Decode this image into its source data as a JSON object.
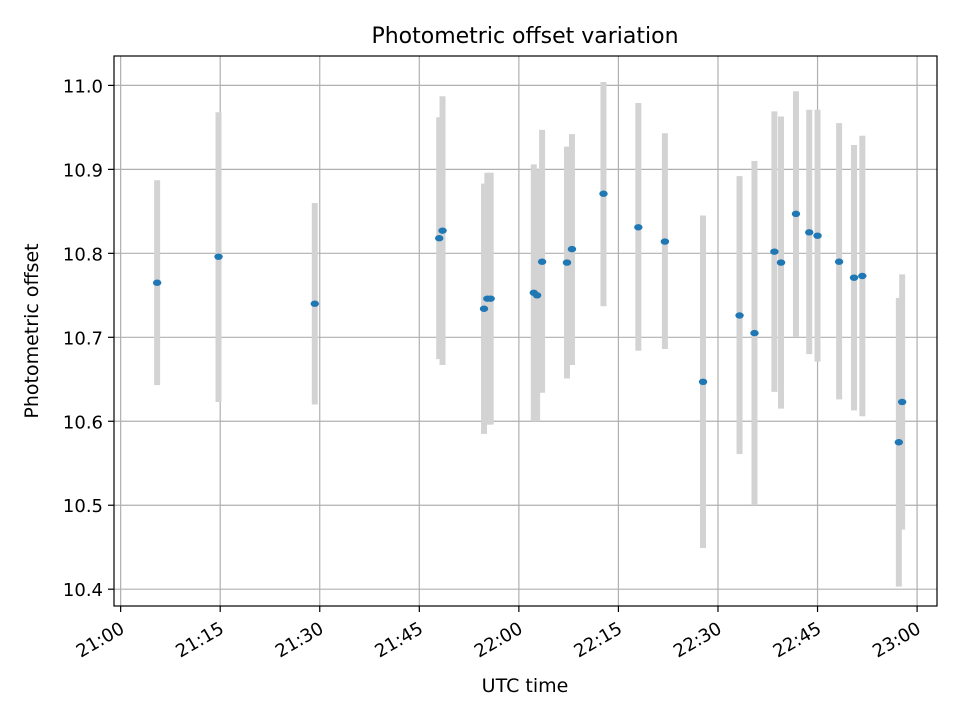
{
  "chart_data": {
    "type": "scatter",
    "title": "Photometric offset variation",
    "xlabel": "UTC time",
    "ylabel": "Photometric offset",
    "grid": true,
    "colors": {
      "point": "#1f77b4",
      "errorbar": "#d3d3d3",
      "grid": "#b0b0b0"
    },
    "x_ticks": [
      "21:00",
      "21:15",
      "21:30",
      "21:45",
      "22:00",
      "22:15",
      "22:30",
      "22:45",
      "23:00"
    ],
    "y_ticks": [
      "10.4",
      "10.5",
      "10.6",
      "10.7",
      "10.8",
      "10.9",
      "11.0"
    ],
    "xlim": [
      "20:59",
      "23:03"
    ],
    "ylim": [
      10.38,
      11.035
    ],
    "points": [
      {
        "x": "21:05:30",
        "y": 10.765,
        "lo": 10.643,
        "hi": 10.887
      },
      {
        "x": "21:14:45",
        "y": 10.796,
        "lo": 10.623,
        "hi": 10.968
      },
      {
        "x": "21:29:15",
        "y": 10.74,
        "lo": 10.62,
        "hi": 10.86
      },
      {
        "x": "21:48:00",
        "y": 10.818,
        "lo": 10.674,
        "hi": 10.962
      },
      {
        "x": "21:48:30",
        "y": 10.827,
        "lo": 10.667,
        "hi": 10.987
      },
      {
        "x": "21:54:45",
        "y": 10.734,
        "lo": 10.585,
        "hi": 10.883
      },
      {
        "x": "21:55:15",
        "y": 10.746,
        "lo": 10.596,
        "hi": 10.896
      },
      {
        "x": "21:55:45",
        "y": 10.746,
        "lo": 10.596,
        "hi": 10.896
      },
      {
        "x": "22:02:15",
        "y": 10.753,
        "lo": 10.6,
        "hi": 10.906
      },
      {
        "x": "22:02:45",
        "y": 10.75,
        "lo": 10.6,
        "hi": 10.9
      },
      {
        "x": "22:03:30",
        "y": 10.79,
        "lo": 10.634,
        "hi": 10.947
      },
      {
        "x": "22:07:15",
        "y": 10.789,
        "lo": 10.651,
        "hi": 10.927
      },
      {
        "x": "22:08:00",
        "y": 10.805,
        "lo": 10.667,
        "hi": 10.942
      },
      {
        "x": "22:12:45",
        "y": 10.871,
        "lo": 10.737,
        "hi": 11.004
      },
      {
        "x": "22:18:00",
        "y": 10.831,
        "lo": 10.684,
        "hi": 10.979
      },
      {
        "x": "22:22:00",
        "y": 10.814,
        "lo": 10.686,
        "hi": 10.943
      },
      {
        "x": "22:27:45",
        "y": 10.647,
        "lo": 10.449,
        "hi": 10.845
      },
      {
        "x": "22:33:15",
        "y": 10.726,
        "lo": 10.561,
        "hi": 10.892
      },
      {
        "x": "22:35:30",
        "y": 10.705,
        "lo": 10.5,
        "hi": 10.91
      },
      {
        "x": "22:38:30",
        "y": 10.802,
        "lo": 10.635,
        "hi": 10.969
      },
      {
        "x": "22:39:30",
        "y": 10.789,
        "lo": 10.615,
        "hi": 10.963
      },
      {
        "x": "22:41:45",
        "y": 10.847,
        "lo": 10.701,
        "hi": 10.993
      },
      {
        "x": "22:43:45",
        "y": 10.825,
        "lo": 10.68,
        "hi": 10.971
      },
      {
        "x": "22:45:00",
        "y": 10.821,
        "lo": 10.671,
        "hi": 10.971
      },
      {
        "x": "22:48:15",
        "y": 10.79,
        "lo": 10.626,
        "hi": 10.955
      },
      {
        "x": "22:50:30",
        "y": 10.771,
        "lo": 10.613,
        "hi": 10.929
      },
      {
        "x": "22:51:45",
        "y": 10.773,
        "lo": 10.606,
        "hi": 10.94
      },
      {
        "x": "22:57:15",
        "y": 10.575,
        "lo": 10.403,
        "hi": 10.747
      },
      {
        "x": "22:57:45",
        "y": 10.623,
        "lo": 10.471,
        "hi": 10.775
      }
    ]
  }
}
